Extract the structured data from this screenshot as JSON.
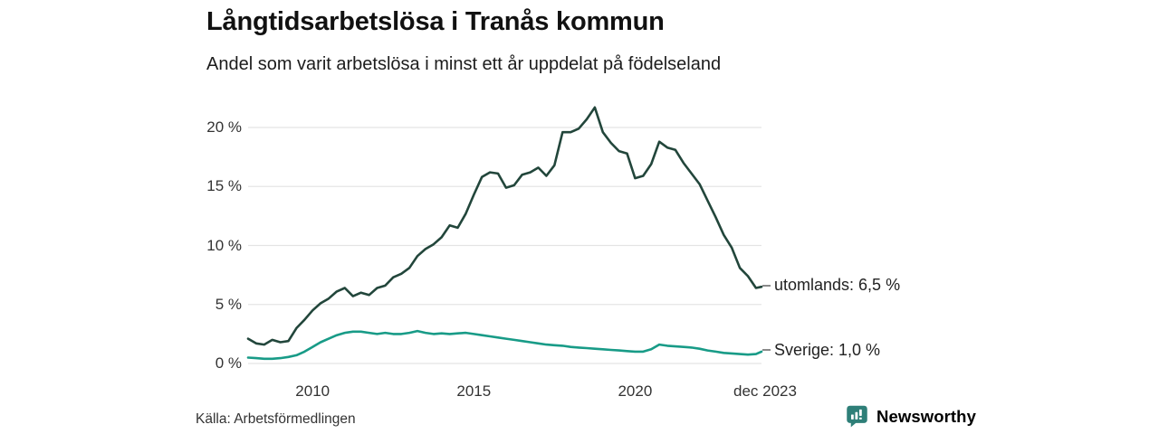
{
  "header": {
    "title": "Långtidsarbetslösa i Tranås kommun",
    "subtitle": "Andel som varit arbetslösa i minst ett år uppdelat på födelseland"
  },
  "footer": {
    "source": "Källa: Arbetsförmedlingen",
    "brand": {
      "name": "Newsworthy",
      "color": "#2e7f78",
      "icon": "bar-chart-speech-bubble-icon"
    }
  },
  "colors": {
    "line_utomlands": "#22463b",
    "line_sverige": "#189b87",
    "grid": "#e4e4e4",
    "title_text": "#111111",
    "axis_text": "#333333",
    "legend_dash": "#8a8a8a"
  },
  "chart_data": {
    "type": "line",
    "title": "Långtidsarbetslösa i Tranås kommun",
    "subtitle": "Andel som varit arbetslösa i minst ett år uppdelat på födelseland",
    "unit": "%",
    "grid": "horizontal",
    "legend_position": "right-of-line-ends",
    "x_domain": [
      2008,
      2023.92
    ],
    "ylim": [
      0,
      22
    ],
    "y_ticks": [
      {
        "value": 0,
        "label": "0 %"
      },
      {
        "value": 5,
        "label": "5 %"
      },
      {
        "value": 10,
        "label": "10 %"
      },
      {
        "value": 15,
        "label": "15 %"
      },
      {
        "value": 20,
        "label": "20 %"
      }
    ],
    "x_ticks": [
      {
        "x": 2010,
        "label": "2010"
      },
      {
        "x": 2015,
        "label": "2015"
      },
      {
        "x": 2020,
        "label": "2020"
      },
      {
        "x": 2023.92,
        "label": "dec 2023"
      }
    ],
    "x": [
      2008,
      2008.25,
      2008.5,
      2008.75,
      2009,
      2009.25,
      2009.5,
      2009.75,
      2010,
      2010.25,
      2010.5,
      2010.75,
      2011,
      2011.25,
      2011.5,
      2011.75,
      2012,
      2012.25,
      2012.5,
      2012.75,
      2013,
      2013.25,
      2013.5,
      2013.75,
      2014,
      2014.25,
      2014.5,
      2014.75,
      2015,
      2015.25,
      2015.5,
      2015.75,
      2016,
      2016.25,
      2016.5,
      2016.75,
      2017,
      2017.25,
      2017.5,
      2017.75,
      2018,
      2018.25,
      2018.5,
      2018.75,
      2019,
      2019.25,
      2019.5,
      2019.75,
      2020,
      2020.25,
      2020.5,
      2020.75,
      2021,
      2021.25,
      2021.5,
      2021.75,
      2022,
      2022.25,
      2022.5,
      2022.75,
      2023,
      2023.25,
      2023.5,
      2023.75,
      2023.92
    ],
    "series": [
      {
        "name": "utomlands",
        "label": "utomlands: 6,5 %",
        "last_value": 6.5,
        "color": "#22463b",
        "values": [
          2.1,
          1.7,
          1.6,
          2.0,
          1.8,
          1.9,
          3.0,
          3.7,
          4.5,
          5.1,
          5.5,
          6.1,
          6.4,
          5.7,
          6.0,
          5.8,
          6.4,
          6.6,
          7.3,
          7.6,
          8.1,
          9.1,
          9.7,
          10.1,
          10.7,
          11.7,
          11.5,
          12.7,
          14.3,
          15.8,
          16.2,
          16.1,
          14.9,
          15.1,
          16.0,
          16.2,
          16.6,
          15.9,
          16.8,
          19.6,
          19.6,
          19.9,
          20.7,
          21.7,
          19.6,
          18.7,
          18.0,
          17.8,
          15.7,
          15.9,
          16.9,
          18.8,
          18.3,
          18.1,
          17.0,
          16.1,
          15.2,
          13.8,
          12.4,
          10.9,
          9.8,
          8.1,
          7.4,
          6.4,
          6.5
        ]
      },
      {
        "name": "Sverige",
        "label": "Sverige: 1,0 %",
        "last_value": 1.0,
        "color": "#189b87",
        "values": [
          0.5,
          0.45,
          0.4,
          0.4,
          0.45,
          0.55,
          0.7,
          1.0,
          1.4,
          1.8,
          2.1,
          2.4,
          2.6,
          2.7,
          2.7,
          2.6,
          2.5,
          2.6,
          2.5,
          2.5,
          2.6,
          2.75,
          2.6,
          2.5,
          2.55,
          2.5,
          2.55,
          2.6,
          2.5,
          2.4,
          2.3,
          2.2,
          2.1,
          2.0,
          1.9,
          1.8,
          1.7,
          1.6,
          1.55,
          1.5,
          1.4,
          1.35,
          1.3,
          1.25,
          1.2,
          1.15,
          1.1,
          1.05,
          1.0,
          1.0,
          1.2,
          1.6,
          1.5,
          1.45,
          1.4,
          1.35,
          1.25,
          1.1,
          1.0,
          0.9,
          0.85,
          0.8,
          0.75,
          0.8,
          1.0
        ]
      }
    ]
  }
}
